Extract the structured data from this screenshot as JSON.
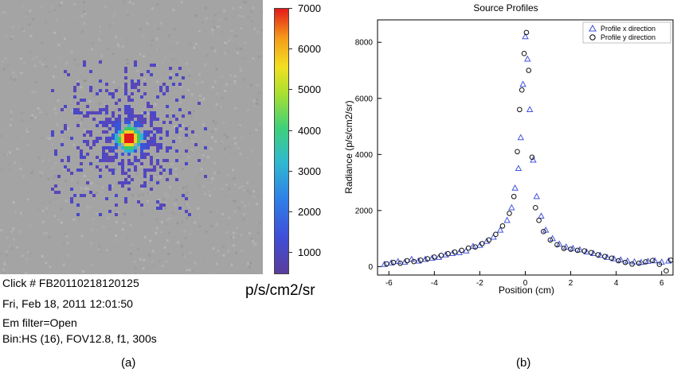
{
  "panel_a": {
    "label": "(a)",
    "metadata": [
      "Click # FB20110218120125",
      "Fri, Feb 18, 2011 12:01:50",
      "Em filter=Open",
      "Bin:HS (16), FOV12.8, f1, 300s"
    ],
    "colorbar": {
      "unit": "p/s/cm2/sr",
      "ticks": [
        "7000",
        "6000",
        "5000",
        "4000",
        "3000",
        "2000",
        "1000"
      ],
      "min": 500,
      "max": 7000
    }
  },
  "panel_b": {
    "label": "(b)"
  },
  "chart_data": {
    "type": "scatter",
    "title": "Source Profiles",
    "xlabel": "Position (cm)",
    "ylabel": "Radiance (p/s/cm2/sr)",
    "xlim": [
      -6.5,
      6.5
    ],
    "ylim": [
      -300,
      8800
    ],
    "xticks": [
      "-6",
      "-4",
      "-2",
      "0",
      "2",
      "4",
      "6"
    ],
    "yticks": [
      "0",
      "2000",
      "4000",
      "6000",
      "8000"
    ],
    "legend": "top-right",
    "series": [
      {
        "name": "Profile x direction",
        "marker": "triangle",
        "color": "#4455dd",
        "points": [
          [
            -6.2,
            80
          ],
          [
            -5.9,
            130
          ],
          [
            -5.6,
            180
          ],
          [
            -5.3,
            160
          ],
          [
            -5.0,
            260
          ],
          [
            -4.7,
            200
          ],
          [
            -4.4,
            260
          ],
          [
            -4.1,
            300
          ],
          [
            -3.8,
            330
          ],
          [
            -3.5,
            420
          ],
          [
            -3.2,
            470
          ],
          [
            -2.9,
            500
          ],
          [
            -2.6,
            560
          ],
          [
            -2.3,
            720
          ],
          [
            -2.0,
            760
          ],
          [
            -1.7,
            900
          ],
          [
            -1.4,
            1050
          ],
          [
            -1.1,
            1300
          ],
          [
            -0.8,
            1650
          ],
          [
            -0.6,
            2100
          ],
          [
            -0.45,
            2800
          ],
          [
            -0.3,
            3500
          ],
          [
            -0.2,
            4600
          ],
          [
            -0.1,
            6500
          ],
          [
            0.0,
            8200
          ],
          [
            0.1,
            7400
          ],
          [
            0.2,
            5600
          ],
          [
            0.35,
            3800
          ],
          [
            0.5,
            2500
          ],
          [
            0.7,
            1800
          ],
          [
            0.9,
            1300
          ],
          [
            1.2,
            1000
          ],
          [
            1.5,
            800
          ],
          [
            1.8,
            700
          ],
          [
            2.1,
            650
          ],
          [
            2.4,
            600
          ],
          [
            2.7,
            520
          ],
          [
            3.0,
            470
          ],
          [
            3.3,
            400
          ],
          [
            3.6,
            330
          ],
          [
            3.9,
            280
          ],
          [
            4.2,
            240
          ],
          [
            4.5,
            200
          ],
          [
            4.8,
            170
          ],
          [
            5.1,
            150
          ],
          [
            5.4,
            190
          ],
          [
            5.7,
            210
          ],
          [
            6.0,
            160
          ],
          [
            6.3,
            200
          ]
        ]
      },
      {
        "name": "Profile y direction",
        "marker": "circle",
        "color": "#111111",
        "points": [
          [
            -6.1,
            100
          ],
          [
            -5.8,
            150
          ],
          [
            -5.5,
            120
          ],
          [
            -5.2,
            210
          ],
          [
            -4.9,
            180
          ],
          [
            -4.6,
            230
          ],
          [
            -4.3,
            280
          ],
          [
            -4.0,
            340
          ],
          [
            -3.7,
            400
          ],
          [
            -3.4,
            460
          ],
          [
            -3.1,
            520
          ],
          [
            -2.8,
            580
          ],
          [
            -2.5,
            660
          ],
          [
            -2.2,
            700
          ],
          [
            -1.9,
            820
          ],
          [
            -1.6,
            950
          ],
          [
            -1.3,
            1150
          ],
          [
            -1.0,
            1450
          ],
          [
            -0.7,
            1900
          ],
          [
            -0.5,
            2500
          ],
          [
            -0.35,
            4100
          ],
          [
            -0.25,
            5600
          ],
          [
            -0.15,
            6300
          ],
          [
            -0.05,
            7600
          ],
          [
            0.05,
            8350
          ],
          [
            0.15,
            7000
          ],
          [
            0.3,
            3900
          ],
          [
            0.45,
            2100
          ],
          [
            0.6,
            1650
          ],
          [
            0.8,
            1250
          ],
          [
            1.1,
            950
          ],
          [
            1.4,
            780
          ],
          [
            1.7,
            650
          ],
          [
            2.0,
            620
          ],
          [
            2.3,
            580
          ],
          [
            2.6,
            560
          ],
          [
            2.9,
            500
          ],
          [
            3.2,
            420
          ],
          [
            3.5,
            360
          ],
          [
            3.8,
            300
          ],
          [
            4.1,
            210
          ],
          [
            4.4,
            150
          ],
          [
            4.7,
            90
          ],
          [
            5.0,
            120
          ],
          [
            5.3,
            170
          ],
          [
            5.6,
            220
          ],
          [
            5.9,
            80
          ],
          [
            6.2,
            -150
          ],
          [
            6.4,
            230
          ]
        ]
      }
    ]
  }
}
